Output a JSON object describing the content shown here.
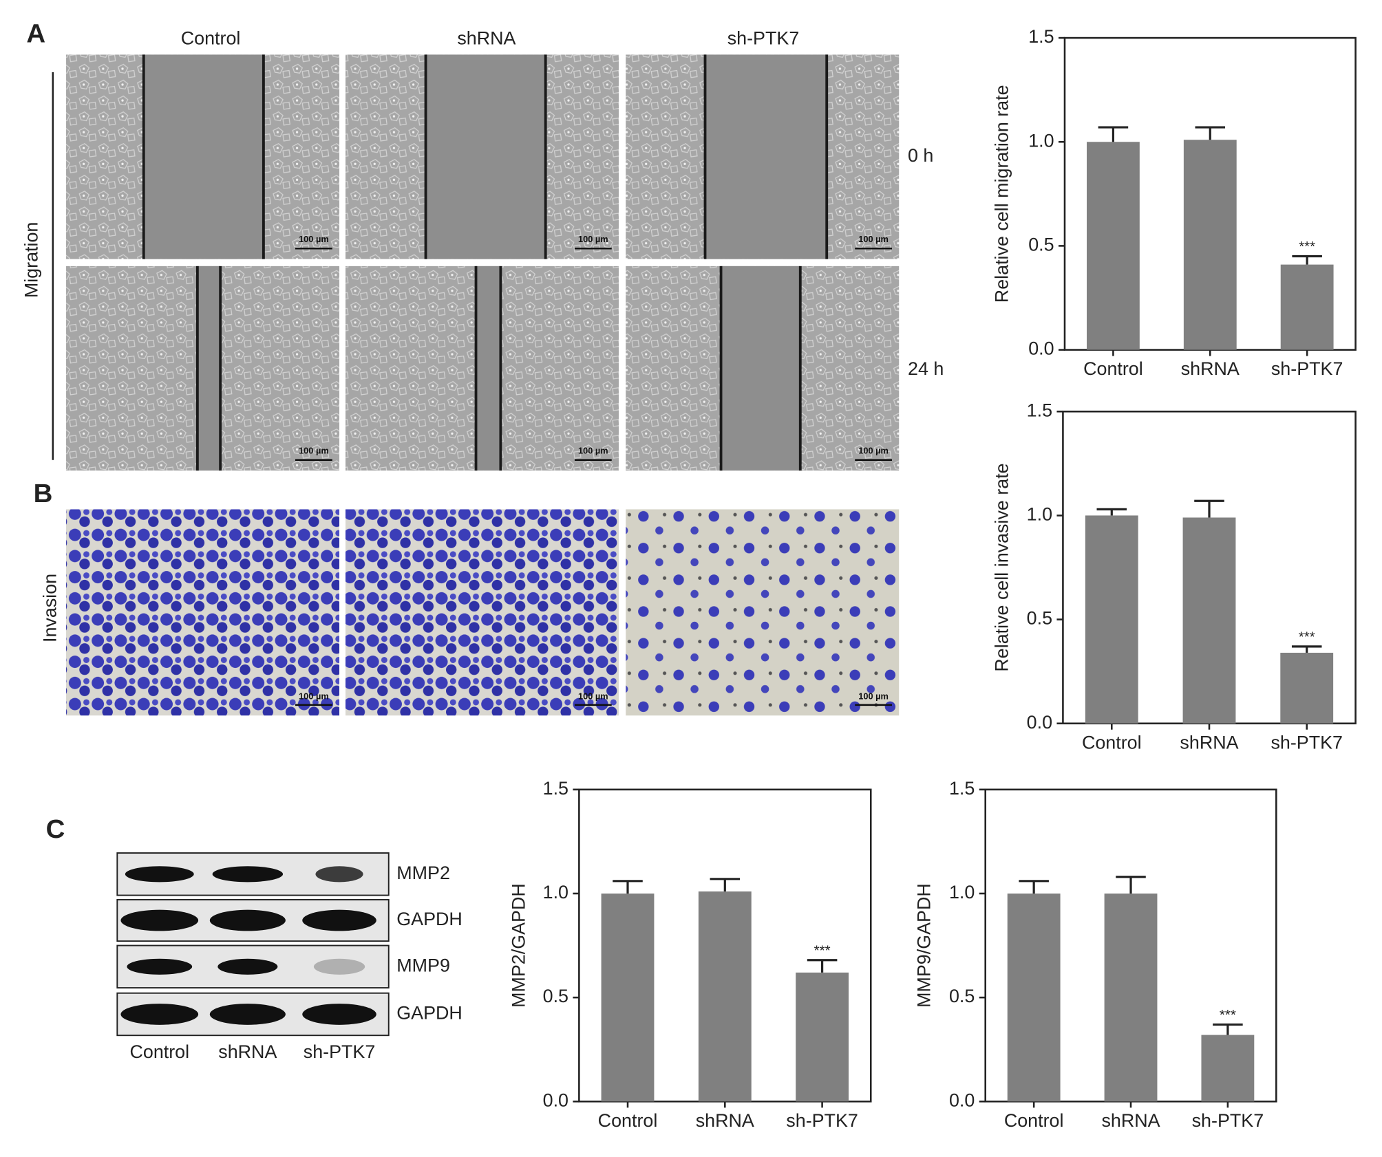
{
  "figure": {
    "panel_labels": [
      "A",
      "B",
      "C"
    ],
    "columns": [
      "Control",
      "shRNA",
      "sh-PTK7"
    ],
    "time_points": [
      "0 h",
      "24 h"
    ],
    "row_labels": [
      "Migration",
      "Invasion"
    ],
    "scale_bar": "100 µm",
    "blot": {
      "proteins": [
        "MMP2",
        "GAPDH",
        "MMP9",
        "GAPDH"
      ],
      "lanes": [
        "Control",
        "shRNA",
        "sh-PTK7"
      ]
    }
  },
  "chart_data": [
    {
      "type": "bar",
      "y_label": "Relative cell migration rate",
      "categories": [
        "Control",
        "shRNA",
        "sh-PTK7"
      ],
      "values": [
        1.0,
        1.01,
        0.41
      ],
      "errors": [
        0.07,
        0.06,
        0.04
      ],
      "annotations": [
        null,
        null,
        "***"
      ],
      "color": "#808080",
      "ylim": [
        0,
        1.5
      ],
      "yticks": [
        {
          "value": 0,
          "label": "0.0"
        },
        {
          "value": 0.5,
          "label": "0.5"
        },
        {
          "value": 1,
          "label": "1.0"
        },
        {
          "value": 1.5,
          "label": "1.5"
        }
      ]
    },
    {
      "type": "bar",
      "y_label": "Relative cell invasive rate",
      "categories": [
        "Control",
        "shRNA",
        "sh-PTK7"
      ],
      "values": [
        1.0,
        0.99,
        0.34
      ],
      "errors": [
        0.03,
        0.08,
        0.03
      ],
      "annotations": [
        null,
        null,
        "***"
      ],
      "color": "#808080",
      "ylim": [
        0,
        1.5
      ],
      "yticks": [
        {
          "value": 0,
          "label": "0.0"
        },
        {
          "value": 0.5,
          "label": "0.5"
        },
        {
          "value": 1,
          "label": "1.0"
        },
        {
          "value": 1.5,
          "label": "1.5"
        }
      ]
    },
    {
      "type": "bar",
      "y_label": "MMP2/GAPDH",
      "categories": [
        "Control",
        "shRNA",
        "sh-PTK7"
      ],
      "values": [
        1.0,
        1.01,
        0.62
      ],
      "errors": [
        0.06,
        0.06,
        0.06
      ],
      "annotations": [
        null,
        null,
        "***"
      ],
      "color": "#808080",
      "ylim": [
        0,
        1.5
      ],
      "yticks": [
        {
          "value": 0,
          "label": "0.0"
        },
        {
          "value": 0.5,
          "label": "0.5"
        },
        {
          "value": 1,
          "label": "1.0"
        },
        {
          "value": 1.5,
          "label": "1.5"
        }
      ]
    },
    {
      "type": "bar",
      "y_label": "MMP9/GAPDH",
      "categories": [
        "Control",
        "shRNA",
        "sh-PTK7"
      ],
      "values": [
        1.0,
        1.0,
        0.32
      ],
      "errors": [
        0.06,
        0.08,
        0.05
      ],
      "annotations": [
        null,
        null,
        "***"
      ],
      "color": "#808080",
      "ylim": [
        0,
        1.5
      ],
      "yticks": [
        {
          "value": 0,
          "label": "0.0"
        },
        {
          "value": 0.5,
          "label": "0.5"
        },
        {
          "value": 1,
          "label": "1.0"
        },
        {
          "value": 1.5,
          "label": "1.5"
        }
      ]
    }
  ]
}
